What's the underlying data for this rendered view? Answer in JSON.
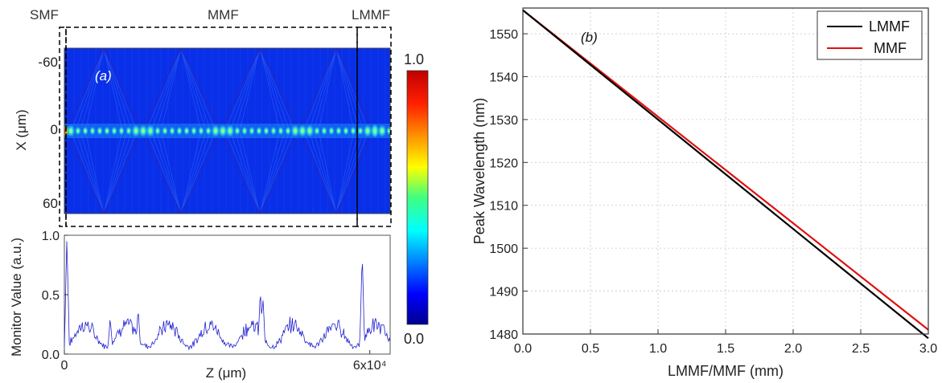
{
  "chart_data": [
    {
      "panel_label": "(a)",
      "type": "heatmap",
      "fiber_labels": [
        "SMF",
        "MMF",
        "LMMF"
      ],
      "ylabel": "X (μm)",
      "yticks": [
        "-60",
        "0",
        "60"
      ],
      "colorbar": {
        "max_label": "1.0",
        "min_label": "0.0"
      },
      "colors": {
        "background": "#0a2fe8",
        "hotspot": "#e0200a"
      }
    },
    {
      "type": "line",
      "ylabel": "Monitor Value (a.u.)",
      "xlabel": "Z (μm)",
      "xticks": [
        {
          "value": 0,
          "label": "0"
        },
        {
          "value": 60000,
          "label": "6x10⁴"
        }
      ],
      "yticks": [
        "0.0",
        "0.5",
        "1.0"
      ],
      "xlim": [
        0,
        64000
      ],
      "ylim": [
        0,
        1
      ],
      "line_color": "#2020d0"
    },
    {
      "panel_label": "(b)",
      "type": "line",
      "xlabel": "LMMF/MMF (mm)",
      "ylabel": "Peak Wavelength (nm)",
      "xlim": [
        0,
        3.0
      ],
      "ylim": [
        1480,
        1556
      ],
      "xticks": [
        "0.0",
        "0.5",
        "1.0",
        "1.5",
        "2.0",
        "2.5",
        "3.0"
      ],
      "yticks": [
        "1480",
        "1490",
        "1500",
        "1510",
        "1520",
        "1530",
        "1540",
        "1550"
      ],
      "grid": true,
      "legend_position": "top-right",
      "series": [
        {
          "name": "LMMF",
          "color": "#000000",
          "x": [
            0,
            3.0
          ],
          "y": [
            1555.5,
            1479.0
          ]
        },
        {
          "name": "MMF",
          "color": "#e01010",
          "x": [
            0,
            3.0
          ],
          "y": [
            1555.5,
            1481.0
          ]
        }
      ]
    }
  ]
}
